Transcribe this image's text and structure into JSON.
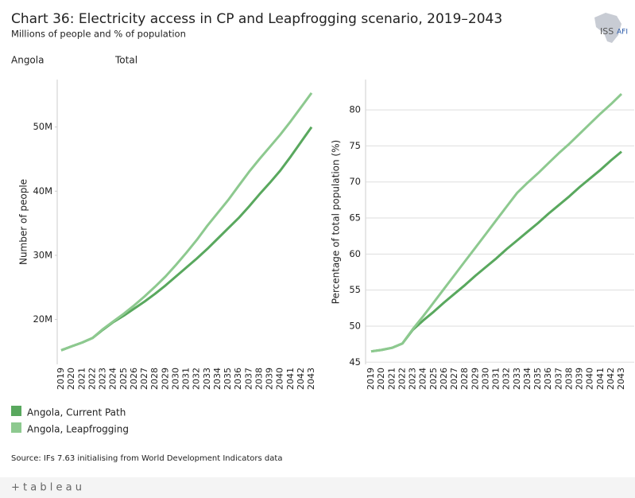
{
  "header": {
    "title": "Chart 36: Electricity access in CP and Leapfrogging scenario, 2019–2043",
    "subtitle": "Millions of people and % of population",
    "country": "Angola",
    "filter": "Total"
  },
  "logo": {
    "text": "ISS",
    "sub": "AFI"
  },
  "chart_data": [
    {
      "type": "line",
      "y_label": "Number of people",
      "categories": [
        "2019",
        "2020",
        "2021",
        "2022",
        "2023",
        "2024",
        "2025",
        "2026",
        "2027",
        "2028",
        "2029",
        "2030",
        "2031",
        "2032",
        "2033",
        "2034",
        "2035",
        "2036",
        "2037",
        "2038",
        "2039",
        "2040",
        "2041",
        "2042",
        "2043"
      ],
      "ylim": [
        13000000,
        57400000
      ],
      "yticks": [
        {
          "value": 20000000,
          "label": "20M"
        },
        {
          "value": 30000000,
          "label": "30M"
        },
        {
          "value": 40000000,
          "label": "40M"
        },
        {
          "value": 50000000,
          "label": "50M"
        }
      ],
      "grid": false,
      "series": [
        {
          "name": "Angola,  Current Path",
          "color": "#59a85e",
          "values": [
            15200000,
            15800000,
            16400000,
            17100000,
            18400000,
            19600000,
            20600000,
            21700000,
            22800000,
            24000000,
            25300000,
            26700000,
            28100000,
            29500000,
            31000000,
            32600000,
            34200000,
            35800000,
            37600000,
            39500000,
            41300000,
            43200000,
            45400000,
            47700000,
            50000000
          ]
        },
        {
          "name": "Angola,  Leapfrogging",
          "color": "#8dc98f",
          "values": [
            15200000,
            15800000,
            16400000,
            17100000,
            18500000,
            19700000,
            20900000,
            22200000,
            23600000,
            25100000,
            26700000,
            28500000,
            30400000,
            32400000,
            34600000,
            36600000,
            38600000,
            40800000,
            43000000,
            45000000,
            46900000,
            48800000,
            50900000,
            53100000,
            55300000
          ]
        }
      ]
    },
    {
      "type": "line",
      "y_label": "Percentage of total population (%)",
      "categories": [
        "2019",
        "2020",
        "2021",
        "2022",
        "2023",
        "2024",
        "2025",
        "2026",
        "2027",
        "2028",
        "2029",
        "2030",
        "2031",
        "2032",
        "2033",
        "2034",
        "2035",
        "2036",
        "2037",
        "2038",
        "2039",
        "2040",
        "2041",
        "2042",
        "2043"
      ],
      "ylim": [
        44.7,
        84.2
      ],
      "yticks": [
        45,
        50,
        55,
        60,
        65,
        70,
        75,
        80
      ],
      "grid": true,
      "series": [
        {
          "name": "Angola,  Current Path",
          "color": "#59a85e",
          "values": [
            46.5,
            46.7,
            47.0,
            47.6,
            49.5,
            50.8,
            52.0,
            53.3,
            54.5,
            55.7,
            57.0,
            58.2,
            59.4,
            60.7,
            61.9,
            63.1,
            64.3,
            65.6,
            66.8,
            68.0,
            69.3,
            70.5,
            71.7,
            73.0,
            74.2
          ]
        },
        {
          "name": "Angola,  Leapfrogging",
          "color": "#8dc98f",
          "values": [
            46.5,
            46.7,
            47.0,
            47.6,
            49.6,
            51.4,
            53.3,
            55.2,
            57.1,
            59.0,
            60.9,
            62.8,
            64.7,
            66.6,
            68.5,
            69.9,
            71.2,
            72.6,
            74.0,
            75.3,
            76.7,
            78.1,
            79.5,
            80.8,
            82.2
          ]
        }
      ]
    }
  ],
  "source": "Source: IFs 7.63 initialising from World Development Indicators data",
  "footer": {
    "brand": "+ t a b l e a u"
  }
}
